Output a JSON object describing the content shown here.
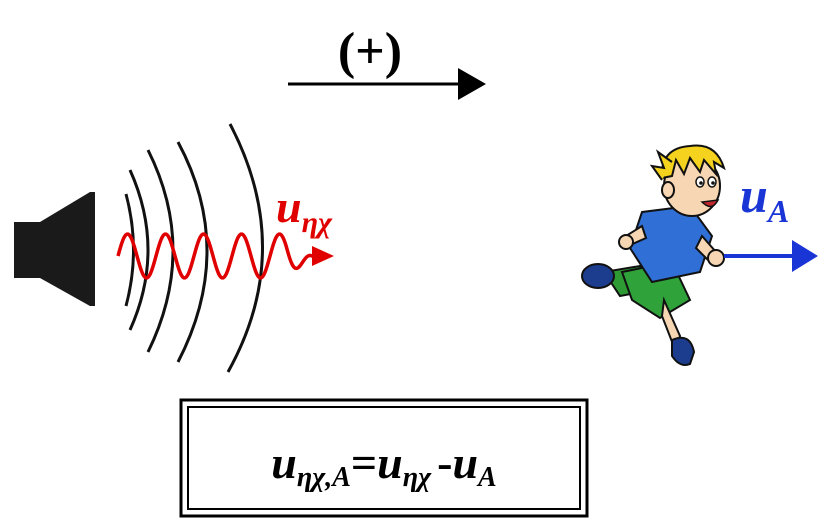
{
  "direction": {
    "sign": "(+)"
  },
  "source": {
    "velocity_symbol": "u",
    "velocity_subscript": "ηχ",
    "wave_color": "#e00000"
  },
  "observer": {
    "velocity_symbol": "u",
    "velocity_subscript": "A",
    "arrow_color": "#1a35d6"
  },
  "formula": {
    "lhs_symbol": "u",
    "lhs_subscript": "ηχ,A",
    "equals": "=",
    "term1_symbol": "u",
    "term1_subscript": "ηχ",
    "minus": "-",
    "term2_symbol": "u",
    "term2_subscript": "A"
  },
  "icons": [
    "speaker-icon",
    "running-boy-icon"
  ]
}
